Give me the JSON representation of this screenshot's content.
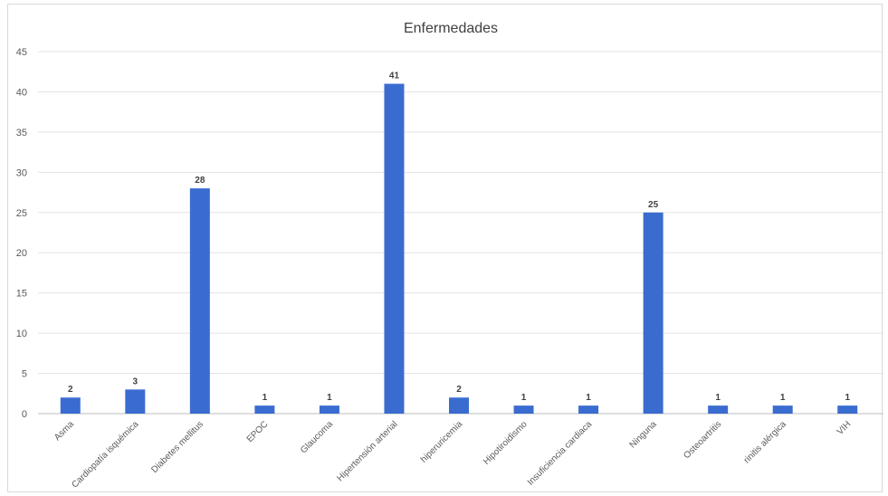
{
  "chart_data": {
    "type": "bar",
    "title": "Enfermedades",
    "xlabel": "",
    "ylabel": "",
    "ylim": [
      0,
      45
    ],
    "yticks": [
      0,
      5,
      10,
      15,
      20,
      25,
      30,
      35,
      40,
      45
    ],
    "grid": true,
    "legend": "none",
    "bar_color": "#3a6cd0",
    "categories": [
      "Asma",
      "Cardiopatía isquémica",
      "Diabetes mellitus",
      "EPOC",
      "Glaucoma",
      "Hipertensión arterial",
      "hiperuricemia",
      "Hipotiroidismo",
      "Insuficiencia cardiaca",
      "Ninguna",
      "Osteoartritis",
      "rinitis alérgica",
      "VIH"
    ],
    "values": [
      2,
      3,
      28,
      1,
      1,
      41,
      2,
      1,
      1,
      25,
      1,
      1,
      1
    ]
  }
}
